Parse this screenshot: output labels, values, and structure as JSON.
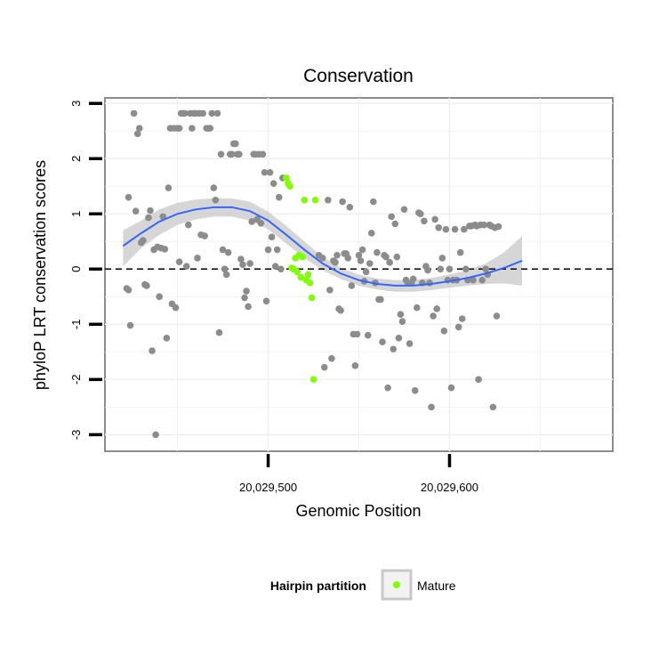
{
  "chart_data": {
    "type": "scatter",
    "title": "Conservation",
    "xlabel": "Genomic Position",
    "ylabel": "phyloP LRT conservation scores",
    "xlim": [
      20029410,
      20029690
    ],
    "ylim": [
      -3.3,
      3.1
    ],
    "x_ticks": [
      {
        "value": 20029500,
        "label": "20,029,500"
      },
      {
        "value": 20029600,
        "label": "20,029,600"
      }
    ],
    "y_ticks": [
      {
        "value": -3,
        "label": "-3"
      },
      {
        "value": -2,
        "label": "-2"
      },
      {
        "value": -1,
        "label": "-1"
      },
      {
        "value": 0,
        "label": "0"
      },
      {
        "value": 1,
        "label": "1"
      },
      {
        "value": 2,
        "label": "2"
      },
      {
        "value": 3,
        "label": "3"
      }
    ],
    "grid": true,
    "reference_line": {
      "y": 0,
      "style": "dashed",
      "color": "#000000"
    },
    "legend": {
      "title": "Hairpin partition",
      "placement": "bottom",
      "entries": [
        {
          "label": "Mature",
          "color": "#7fff00"
        }
      ]
    },
    "colors": {
      "points": "#8c8c8c",
      "mature": "#7fff00",
      "smooth_line": "#3366ff",
      "confidence_band": "#c8c8c8",
      "panel_border": "#8c8c8c"
    },
    "series": [
      {
        "kind": "points",
        "color": "#8c8c8c",
        "points": [
          [
            20029422,
            -0.35
          ],
          [
            20029423,
            -0.38
          ],
          [
            20029423,
            1.3
          ],
          [
            20029424,
            -1.02
          ],
          [
            20029426,
            2.82
          ],
          [
            20029427,
            1.05
          ],
          [
            20029428,
            2.45
          ],
          [
            20029429,
            2.55
          ],
          [
            20029430,
            0.48
          ],
          [
            20029431,
            0.52
          ],
          [
            20029432,
            -0.28
          ],
          [
            20029433,
            -0.3
          ],
          [
            20029434,
            0.93
          ],
          [
            20029435,
            1.06
          ],
          [
            20029436,
            -1.48
          ],
          [
            20029437,
            0.35
          ],
          [
            20029438,
            -3.0
          ],
          [
            20029439,
            0.4
          ],
          [
            20029440,
            -0.5
          ],
          [
            20029441,
            0.38
          ],
          [
            20029442,
            0.95
          ],
          [
            20029443,
            0.36
          ],
          [
            20029444,
            -1.25
          ],
          [
            20029445,
            1.47
          ],
          [
            20029446,
            2.55
          ],
          [
            20029447,
            -0.63
          ],
          [
            20029448,
            2.55
          ],
          [
            20029449,
            -0.7
          ],
          [
            20029450,
            2.55
          ],
          [
            20029451,
            2.55
          ],
          [
            20029451,
            0.13
          ],
          [
            20029452,
            2.82
          ],
          [
            20029453,
            2.82
          ],
          [
            20029454,
            2.82
          ],
          [
            20029455,
            0.05
          ],
          [
            20029456,
            0.8
          ],
          [
            20029457,
            2.82
          ],
          [
            20029458,
            2.55
          ],
          [
            20029459,
            2.82
          ],
          [
            20029460,
            2.82
          ],
          [
            20029461,
            0.2
          ],
          [
            20029462,
            2.82
          ],
          [
            20029463,
            0.62
          ],
          [
            20029464,
            2.82
          ],
          [
            20029465,
            0.6
          ],
          [
            20029466,
            2.55
          ],
          [
            20029467,
            2.55
          ],
          [
            20029468,
            2.55
          ],
          [
            20029469,
            2.82
          ],
          [
            20029470,
            1.47
          ],
          [
            20029471,
            1.25
          ],
          [
            20029472,
            2.82
          ],
          [
            20029473,
            -1.15
          ],
          [
            20029474,
            2.08
          ],
          [
            20029475,
            0.35
          ],
          [
            20029476,
            0.0
          ],
          [
            20029477,
            -0.1
          ],
          [
            20029478,
            0.3
          ],
          [
            20029479,
            2.08
          ],
          [
            20029480,
            2.08
          ],
          [
            20029481,
            2.27
          ],
          [
            20029482,
            2.27
          ],
          [
            20029483,
            2.08
          ],
          [
            20029484,
            2.08
          ],
          [
            20029485,
            0.18
          ],
          [
            20029486,
            0.08
          ],
          [
            20029487,
            -0.52
          ],
          [
            20029488,
            -0.4
          ],
          [
            20029489,
            -0.68
          ],
          [
            20029490,
            0.1
          ],
          [
            20029491,
            0.86
          ],
          [
            20029492,
            2.08
          ],
          [
            20029493,
            2.08
          ],
          [
            20029494,
            0.9
          ],
          [
            20029495,
            2.08
          ],
          [
            20029496,
            0.83
          ],
          [
            20029497,
            2.08
          ],
          [
            20029498,
            1.75
          ],
          [
            20029499,
            -0.58
          ],
          [
            20029500,
            0.35
          ],
          [
            20029501,
            1.75
          ],
          [
            20029502,
            0.58
          ],
          [
            20029503,
            1.55
          ],
          [
            20029504,
            0.05
          ],
          [
            20029505,
            0.35
          ],
          [
            20029506,
            1.3
          ],
          [
            20029507,
            0.0
          ],
          [
            20029508,
            1.65
          ],
          [
            20029528,
            0.25
          ],
          [
            20029530,
            0.2
          ],
          [
            20029531,
            -1.78
          ],
          [
            20029533,
            1.25
          ],
          [
            20029534,
            -0.38
          ],
          [
            20029535,
            -1.62
          ],
          [
            20029536,
            0.15
          ],
          [
            20029537,
            0.12
          ],
          [
            20029538,
            0.25
          ],
          [
            20029539,
            -0.72
          ],
          [
            20029540,
            -0.75
          ],
          [
            20029541,
            1.22
          ],
          [
            20029542,
            0.28
          ],
          [
            20029543,
            0.28
          ],
          [
            20029544,
            0.2
          ],
          [
            20029545,
            1.12
          ],
          [
            20029546,
            -0.3
          ],
          [
            20029547,
            -1.18
          ],
          [
            20029548,
            -1.75
          ],
          [
            20029549,
            -1.18
          ],
          [
            20029550,
            0.25
          ],
          [
            20029551,
            0.15
          ],
          [
            20029552,
            0.35
          ],
          [
            20029553,
            -0.22
          ],
          [
            20029554,
            -0.05
          ],
          [
            20029555,
            -1.2
          ],
          [
            20029556,
            0.1
          ],
          [
            20029557,
            0.65
          ],
          [
            20029558,
            1.22
          ],
          [
            20029559,
            -0.25
          ],
          [
            20029560,
            0.3
          ],
          [
            20029561,
            -0.55
          ],
          [
            20029562,
            -0.55
          ],
          [
            20029563,
            -1.32
          ],
          [
            20029564,
            0.25
          ],
          [
            20029565,
            0.22
          ],
          [
            20029566,
            -2.15
          ],
          [
            20029567,
            0.12
          ],
          [
            20029568,
            0.95
          ],
          [
            20029569,
            -1.45
          ],
          [
            20029570,
            0.82
          ],
          [
            20029571,
            0.22
          ],
          [
            20029572,
            -1.25
          ],
          [
            20029573,
            -0.82
          ],
          [
            20029574,
            -0.95
          ],
          [
            20029575,
            1.08
          ],
          [
            20029576,
            -0.2
          ],
          [
            20029577,
            -0.25
          ],
          [
            20029578,
            -1.35
          ],
          [
            20029579,
            -0.25
          ],
          [
            20029580,
            -0.18
          ],
          [
            20029581,
            -2.2
          ],
          [
            20029582,
            -0.7
          ],
          [
            20029583,
            1.02
          ],
          [
            20029584,
            1.0
          ],
          [
            20029585,
            -0.25
          ],
          [
            20029586,
            0.87
          ],
          [
            20029587,
            0.05
          ],
          [
            20029588,
            -0.02
          ],
          [
            20029589,
            -0.25
          ],
          [
            20029590,
            -2.5
          ],
          [
            20029591,
            -0.85
          ],
          [
            20029592,
            0.9
          ],
          [
            20029593,
            -0.72
          ],
          [
            20029594,
            0.75
          ],
          [
            20029595,
            0.0
          ],
          [
            20029596,
            0.2
          ],
          [
            20029597,
            -1.12
          ],
          [
            20029598,
            0.72
          ],
          [
            20029599,
            -0.2
          ],
          [
            20029600,
            0.0
          ],
          [
            20029601,
            -2.15
          ],
          [
            20029602,
            -0.2
          ],
          [
            20029603,
            0.72
          ],
          [
            20029604,
            -0.2
          ],
          [
            20029605,
            -1.05
          ],
          [
            20029606,
            0.3
          ],
          [
            20029607,
            -0.9
          ],
          [
            20029608,
            0.72
          ],
          [
            20029609,
            0.0
          ],
          [
            20029610,
            -0.2
          ],
          [
            20029611,
            0.78
          ],
          [
            20029612,
            0.78
          ],
          [
            20029613,
            -0.2
          ],
          [
            20029614,
            0.8
          ],
          [
            20029615,
            0.78
          ],
          [
            20029616,
            -2.0
          ],
          [
            20029617,
            0.8
          ],
          [
            20029618,
            -0.2
          ],
          [
            20029619,
            0.8
          ],
          [
            20029620,
            0.0
          ],
          [
            20029621,
            -0.1
          ],
          [
            20029622,
            0.8
          ],
          [
            20029623,
            0.78
          ],
          [
            20029624,
            -2.5
          ],
          [
            20029625,
            0.75
          ],
          [
            20029626,
            -0.85
          ],
          [
            20029627,
            0.77
          ]
        ]
      },
      {
        "kind": "points",
        "color": "#7fff00",
        "points": [
          [
            20029510,
            1.65
          ],
          [
            20029511,
            1.55
          ],
          [
            20029512,
            1.5
          ],
          [
            20029513,
            0.02
          ],
          [
            20029514,
            0.0
          ],
          [
            20029515,
            0.2
          ],
          [
            20029516,
            -0.05
          ],
          [
            20029517,
            0.25
          ],
          [
            20029518,
            -0.15
          ],
          [
            20029519,
            0.22
          ],
          [
            20029520,
            1.25
          ],
          [
            20029521,
            -0.2
          ],
          [
            20029522,
            -0.1
          ],
          [
            20029523,
            -0.25
          ],
          [
            20029524,
            -0.52
          ],
          [
            20029525,
            -2.0
          ],
          [
            20029526,
            1.25
          ]
        ]
      },
      {
        "kind": "smooth",
        "color": "#3366ff",
        "points": [
          [
            20029420,
            0.42
          ],
          [
            20029430,
            0.65
          ],
          [
            20029440,
            0.86
          ],
          [
            20029450,
            1.0
          ],
          [
            20029460,
            1.08
          ],
          [
            20029470,
            1.12
          ],
          [
            20029480,
            1.12
          ],
          [
            20029490,
            1.05
          ],
          [
            20029500,
            0.88
          ],
          [
            20029510,
            0.62
          ],
          [
            20029520,
            0.35
          ],
          [
            20029530,
            0.1
          ],
          [
            20029540,
            -0.08
          ],
          [
            20029550,
            -0.2
          ],
          [
            20029560,
            -0.27
          ],
          [
            20029570,
            -0.3
          ],
          [
            20029580,
            -0.3
          ],
          [
            20029590,
            -0.27
          ],
          [
            20029600,
            -0.22
          ],
          [
            20029610,
            -0.16
          ],
          [
            20029620,
            -0.08
          ],
          [
            20029630,
            0.02
          ],
          [
            20029640,
            0.15
          ]
        ],
        "band_upper": [
          [
            20029420,
            0.7
          ],
          [
            20029430,
            0.88
          ],
          [
            20029440,
            1.08
          ],
          [
            20029450,
            1.2
          ],
          [
            20029460,
            1.26
          ],
          [
            20029470,
            1.28
          ],
          [
            20029480,
            1.28
          ],
          [
            20029490,
            1.22
          ],
          [
            20029500,
            1.04
          ],
          [
            20029510,
            0.78
          ],
          [
            20029520,
            0.5
          ],
          [
            20029530,
            0.22
          ],
          [
            20029540,
            0.02
          ],
          [
            20029550,
            -0.1
          ],
          [
            20029560,
            -0.17
          ],
          [
            20029570,
            -0.2
          ],
          [
            20029580,
            -0.2
          ],
          [
            20029590,
            -0.16
          ],
          [
            20029600,
            -0.1
          ],
          [
            20029610,
            -0.02
          ],
          [
            20029620,
            0.1
          ],
          [
            20029630,
            0.3
          ],
          [
            20029640,
            0.6
          ]
        ],
        "band_lower": [
          [
            20029420,
            0.05
          ],
          [
            20029430,
            0.38
          ],
          [
            20029440,
            0.62
          ],
          [
            20029450,
            0.8
          ],
          [
            20029460,
            0.9
          ],
          [
            20029470,
            0.95
          ],
          [
            20029480,
            0.95
          ],
          [
            20029490,
            0.88
          ],
          [
            20029500,
            0.72
          ],
          [
            20029510,
            0.46
          ],
          [
            20029520,
            0.2
          ],
          [
            20029530,
            -0.02
          ],
          [
            20029540,
            -0.18
          ],
          [
            20029550,
            -0.3
          ],
          [
            20029560,
            -0.37
          ],
          [
            20029570,
            -0.41
          ],
          [
            20029580,
            -0.41
          ],
          [
            20029590,
            -0.38
          ],
          [
            20029600,
            -0.34
          ],
          [
            20029610,
            -0.3
          ],
          [
            20029620,
            -0.27
          ],
          [
            20029630,
            -0.26
          ],
          [
            20029640,
            -0.3
          ]
        ]
      }
    ]
  }
}
